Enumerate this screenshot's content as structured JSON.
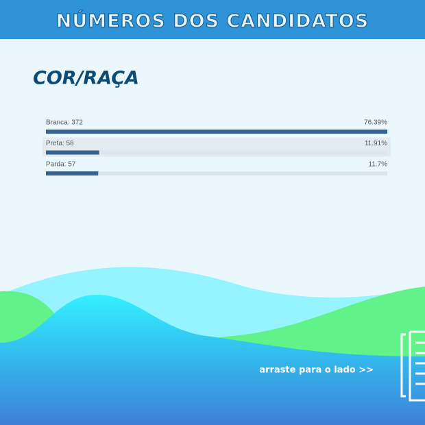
{
  "chart_data": {
    "type": "bar",
    "title": "NÚMEROS DOS CANDIDATOS",
    "subtitle": "COR/RAÇA",
    "categories": [
      "Branca: 372",
      "Preta: 58",
      "Parda: 57"
    ],
    "values": [
      76.39,
      11.91,
      11.7
    ],
    "value_labels": [
      "76.39%",
      "11.91%",
      "11.7%"
    ],
    "xlim": [
      0,
      76.39
    ],
    "color": "#36628f",
    "annotation": "arraste para o lado >>"
  }
}
